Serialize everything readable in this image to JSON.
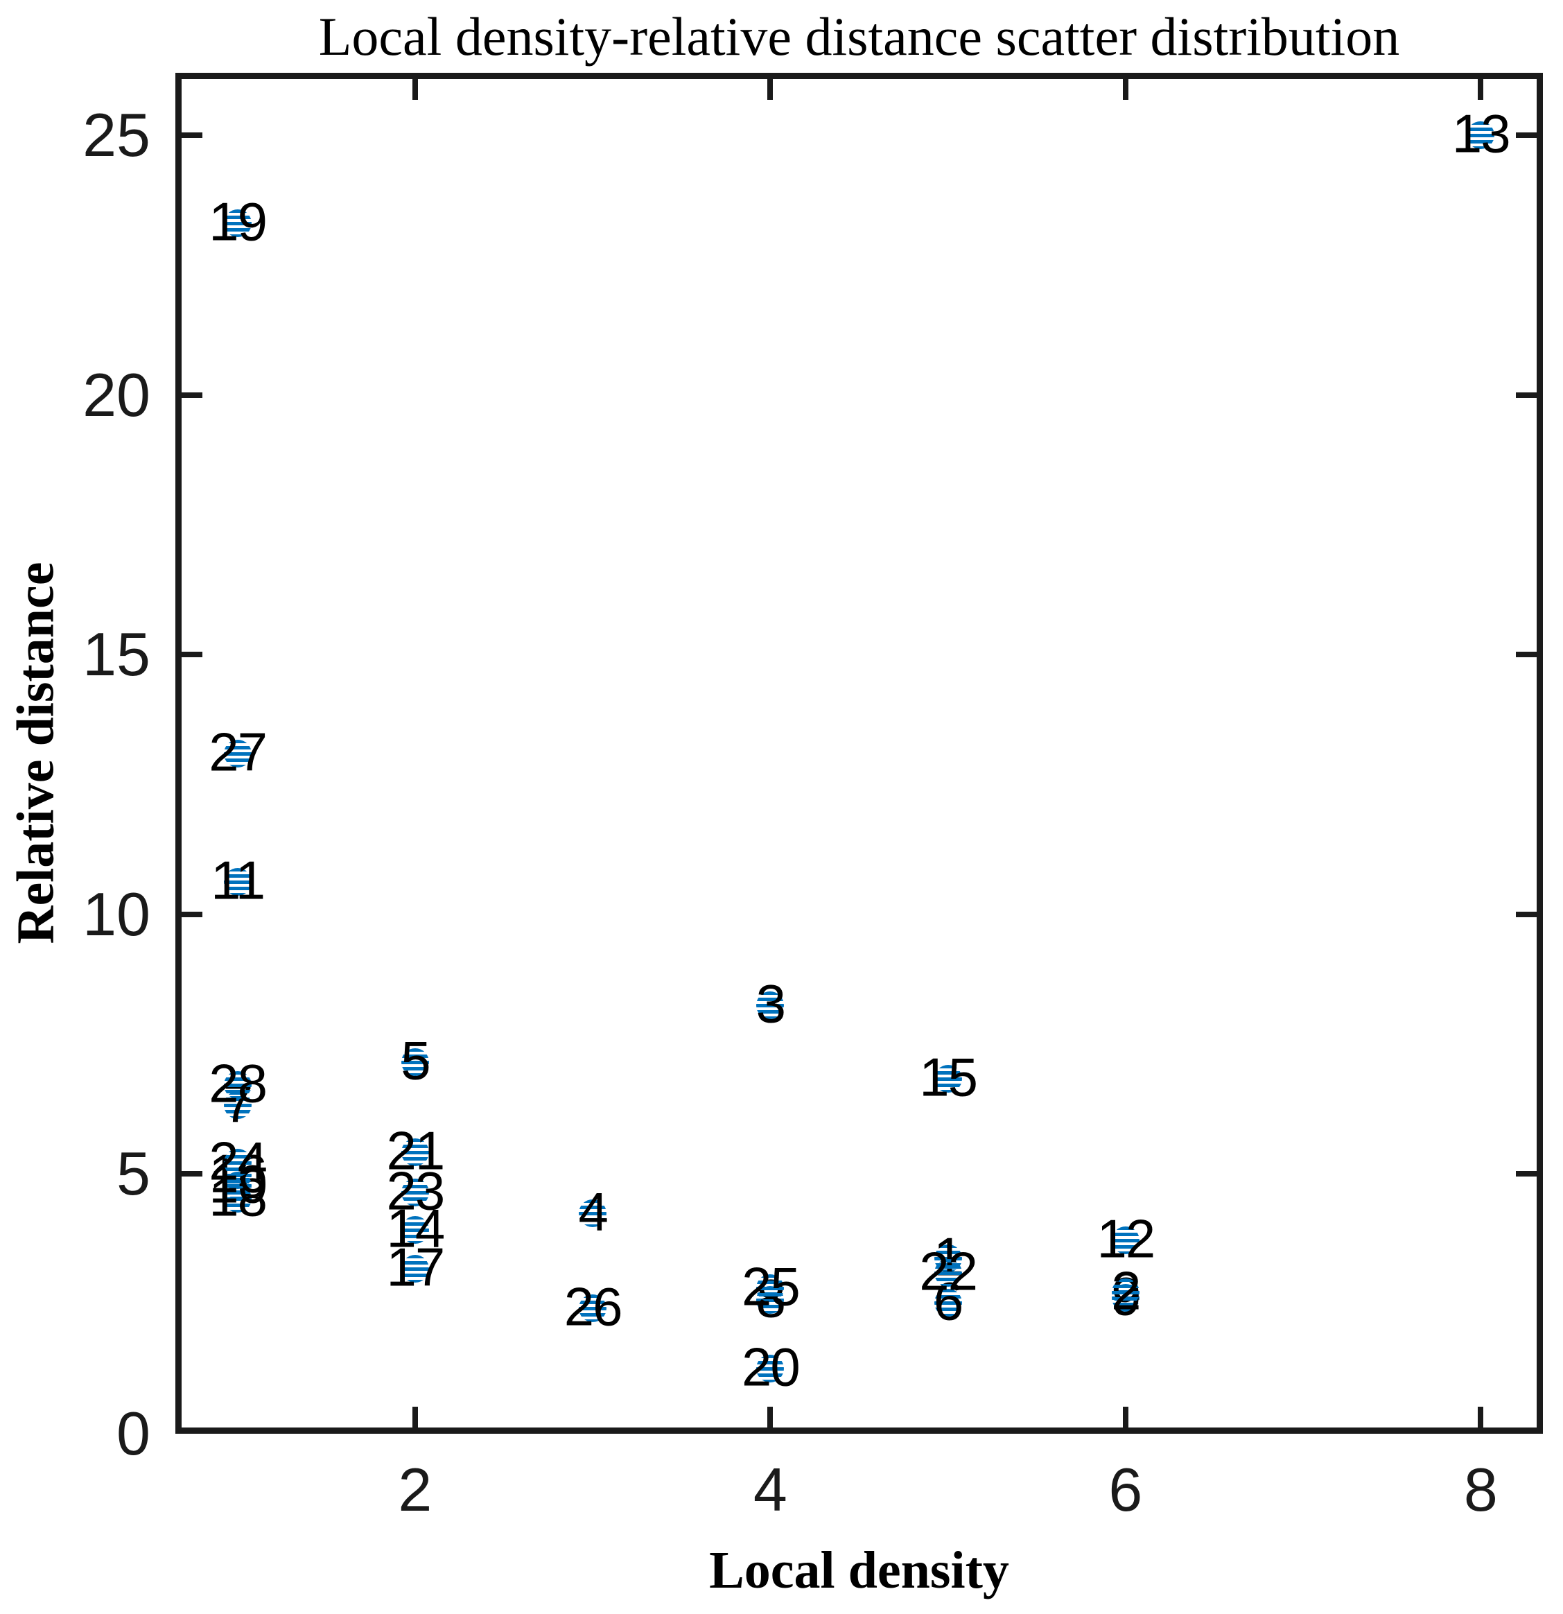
{
  "figure": {
    "title": "Local density-relative distance scatter distribution",
    "background": "#ffffff"
  },
  "colors": {
    "marker": "#0072BD",
    "point_label": "#000000",
    "axis": "#1a1a1a"
  },
  "chart_data": {
    "type": "scatter",
    "title": "Local density-relative distance scatter distribution",
    "xlabel": "Local density",
    "ylabel": "Relative distance",
    "xlim": [
      0.65,
      8.35
    ],
    "ylim": [
      0,
      26.2
    ],
    "x_ticks": [
      2,
      4,
      6,
      8
    ],
    "y_ticks": [
      0,
      5,
      10,
      15,
      20,
      25
    ],
    "grid": false,
    "legend": null,
    "marker_style": "blue circle with horizontal white hatch stripes, numeric label centered on point",
    "points": [
      {
        "label": "14",
        "x": 2,
        "y": 3.92,
        "occluded": true
      },
      {
        "label": "7",
        "x": 1,
        "y": 6.32,
        "occluded": true
      },
      {
        "label": "18",
        "x": 1,
        "y": 4.52,
        "occluded": true
      },
      {
        "label": "10",
        "x": 1,
        "y": 4.78,
        "occluded": true
      },
      {
        "label": "16",
        "x": 1,
        "y": 4.98,
        "occluded": true
      },
      {
        "label": "9",
        "x": 6,
        "y": 2.62,
        "occluded": true
      },
      {
        "label": "8",
        "x": 4,
        "y": 2.58,
        "occluded": true
      },
      {
        "label": "6",
        "x": 5,
        "y": 2.52,
        "occluded": true
      },
      {
        "label": "1",
        "x": 5,
        "y": 3.38,
        "occluded": true
      },
      {
        "label": "21",
        "x": 2,
        "y": 5.42,
        "occluded": false
      },
      {
        "label": "23",
        "x": 2,
        "y": 4.65,
        "occluded": false
      },
      {
        "label": "17",
        "x": 2,
        "y": 3.18,
        "occluded": false
      },
      {
        "label": "24",
        "x": 1,
        "y": 5.22,
        "occluded": false
      },
      {
        "label": "28",
        "x": 1,
        "y": 6.72,
        "occluded": false
      },
      {
        "label": "19",
        "x": 1,
        "y": 23.3,
        "occluded": false
      },
      {
        "label": "27",
        "x": 1,
        "y": 13.1,
        "occluded": false
      },
      {
        "label": "11",
        "x": 1,
        "y": 10.62,
        "occluded": false
      },
      {
        "label": "5",
        "x": 2,
        "y": 7.15,
        "occluded": false
      },
      {
        "label": "4",
        "x": 3,
        "y": 4.25,
        "occluded": false
      },
      {
        "label": "26",
        "x": 3,
        "y": 2.42,
        "occluded": false
      },
      {
        "label": "3",
        "x": 4,
        "y": 8.25,
        "occluded": false
      },
      {
        "label": "25",
        "x": 4,
        "y": 2.8,
        "occluded": false
      },
      {
        "label": "20",
        "x": 4,
        "y": 1.25,
        "occluded": false
      },
      {
        "label": "15",
        "x": 5,
        "y": 6.83,
        "occluded": false
      },
      {
        "label": "22",
        "x": 5,
        "y": 3.1,
        "occluded": false
      },
      {
        "label": "12",
        "x": 6,
        "y": 3.72,
        "occluded": false
      },
      {
        "label": "2",
        "x": 6,
        "y": 2.72,
        "occluded": false
      },
      {
        "label": "13",
        "x": 8,
        "y": 25.0,
        "occluded": false
      }
    ]
  }
}
